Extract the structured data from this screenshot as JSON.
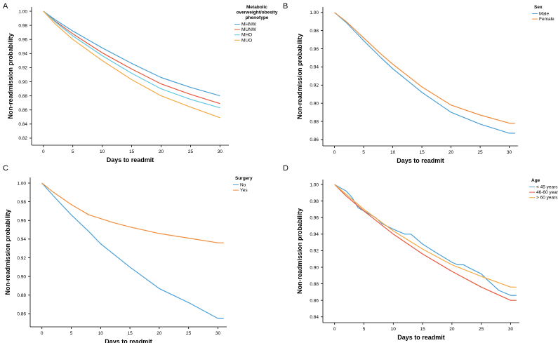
{
  "chart_data": [
    {
      "type": "line",
      "panel": "A",
      "xlabel": "Days to readmit",
      "ylabel": "Non-readmission probability",
      "xticks": [
        0,
        5,
        10,
        15,
        20,
        25,
        30
      ],
      "yticks": [
        0.82,
        0.84,
        0.86,
        0.88,
        0.9,
        0.92,
        0.94,
        0.96,
        0.98,
        1.0
      ],
      "xlim": [
        -2,
        31.5
      ],
      "ylim": [
        0.81,
        1.006
      ],
      "legend_title": "Metabolic overweight/obesity phenotype",
      "legend_title_lines": [
        "Metabolic",
        "overweight/obesity",
        "phenotype"
      ],
      "legend_position": "top-right",
      "series": [
        {
          "name": "MHNW",
          "color": "#4aa0d8",
          "x": [
            0,
            2,
            5,
            10,
            15,
            20,
            25,
            30
          ],
          "y": [
            1.0,
            0.988,
            0.972,
            0.948,
            0.926,
            0.906,
            0.892,
            0.88
          ]
        },
        {
          "name": "MUNW",
          "color": "#e8553a",
          "x": [
            0,
            2,
            5,
            10,
            15,
            20,
            25,
            30
          ],
          "y": [
            1.0,
            0.986,
            0.968,
            0.941,
            0.918,
            0.897,
            0.882,
            0.869
          ]
        },
        {
          "name": "MHO",
          "color": "#5cc8e4",
          "x": [
            0,
            2,
            5,
            10,
            15,
            20,
            25,
            30
          ],
          "y": [
            1.0,
            0.985,
            0.965,
            0.937,
            0.912,
            0.89,
            0.875,
            0.863
          ]
        },
        {
          "name": "MUO",
          "color": "#f5a742",
          "x": [
            0,
            2,
            5,
            10,
            15,
            20,
            25,
            30
          ],
          "y": [
            1.0,
            0.982,
            0.96,
            0.93,
            0.903,
            0.88,
            0.864,
            0.849
          ]
        }
      ]
    },
    {
      "type": "line",
      "panel": "B",
      "xlabel": "Days to readmit",
      "ylabel": "Non-readmission probability",
      "xticks": [
        0,
        5,
        10,
        15,
        20,
        25,
        30
      ],
      "yticks": [
        0.86,
        0.88,
        0.9,
        0.92,
        0.94,
        0.96,
        0.98,
        1.0
      ],
      "xlim": [
        -2,
        31.5
      ],
      "ylim": [
        0.853,
        1.006
      ],
      "legend_title": "Sex",
      "legend_title_lines": [
        "Sex"
      ],
      "legend_position": "top-right",
      "series": [
        {
          "name": "Male",
          "color": "#4aa0d8",
          "x": [
            0,
            2,
            5,
            8,
            10,
            15,
            20,
            25,
            30,
            31
          ],
          "y": [
            1.0,
            0.989,
            0.969,
            0.95,
            0.938,
            0.912,
            0.89,
            0.877,
            0.867,
            0.867
          ]
        },
        {
          "name": "Female",
          "color": "#f08c3a",
          "x": [
            0,
            2,
            5,
            8,
            10,
            15,
            20,
            25,
            30,
            31
          ],
          "y": [
            1.0,
            0.99,
            0.972,
            0.954,
            0.943,
            0.918,
            0.898,
            0.887,
            0.878,
            0.878
          ]
        }
      ]
    },
    {
      "type": "line",
      "panel": "C",
      "xlabel": "Days to readmit",
      "ylabel": "Non-readmission probability",
      "xticks": [
        0,
        5,
        10,
        15,
        20,
        25,
        30
      ],
      "yticks": [
        0.86,
        0.88,
        0.9,
        0.92,
        0.94,
        0.96,
        0.98,
        1.0
      ],
      "xlim": [
        -2,
        31.5
      ],
      "ylim": [
        0.846,
        1.006
      ],
      "legend_title": "Surgery",
      "legend_title_lines": [
        "Surgery"
      ],
      "legend_position": "top-right",
      "series": [
        {
          "name": "No",
          "color": "#4aa0d8",
          "x": [
            0,
            2,
            5,
            8,
            10,
            15,
            20,
            25,
            30,
            31
          ],
          "y": [
            1.0,
            0.986,
            0.966,
            0.948,
            0.935,
            0.91,
            0.887,
            0.872,
            0.855,
            0.855
          ]
        },
        {
          "name": "Yes",
          "color": "#f08c3a",
          "x": [
            0,
            2,
            5,
            8,
            10,
            12,
            15,
            20,
            25,
            30,
            31
          ],
          "y": [
            1.0,
            0.99,
            0.977,
            0.966,
            0.962,
            0.958,
            0.953,
            0.946,
            0.941,
            0.936,
            0.936
          ]
        }
      ]
    },
    {
      "type": "line",
      "panel": "D",
      "xlabel": "Days to readmit",
      "ylabel": "Non-readmission probability",
      "xticks": [
        0,
        5,
        10,
        15,
        20,
        25,
        30
      ],
      "yticks": [
        0.84,
        0.86,
        0.88,
        0.9,
        0.92,
        0.94,
        0.96,
        0.98,
        1.0
      ],
      "xlim": [
        -2,
        31.5
      ],
      "ylim": [
        0.833,
        1.006
      ],
      "legend_title": "Age",
      "legend_title_lines": [
        "Age"
      ],
      "legend_position": "top-right",
      "series": [
        {
          "name": "< 45 years",
          "color": "#4aa0d8",
          "x": [
            0,
            2,
            3,
            4,
            5,
            7,
            8,
            10,
            12,
            13,
            15,
            17,
            20,
            21,
            22,
            23,
            25,
            26,
            28,
            30,
            31
          ],
          "y": [
            1.0,
            0.992,
            0.984,
            0.972,
            0.968,
            0.96,
            0.953,
            0.946,
            0.94,
            0.94,
            0.928,
            0.919,
            0.906,
            0.903,
            0.903,
            0.899,
            0.892,
            0.885,
            0.872,
            0.866,
            0.866
          ]
        },
        {
          "name": "46-60 years",
          "color": "#e8553a",
          "x": [
            0,
            2,
            5,
            10,
            15,
            20,
            25,
            30,
            31
          ],
          "y": [
            1.0,
            0.986,
            0.968,
            0.94,
            0.916,
            0.895,
            0.876,
            0.86,
            0.86
          ]
        },
        {
          "name": "> 60 years",
          "color": "#f5a742",
          "x": [
            0,
            2,
            5,
            10,
            15,
            20,
            25,
            30,
            31
          ],
          "y": [
            1.0,
            0.988,
            0.97,
            0.944,
            0.922,
            0.903,
            0.889,
            0.876,
            0.876
          ]
        }
      ]
    }
  ]
}
